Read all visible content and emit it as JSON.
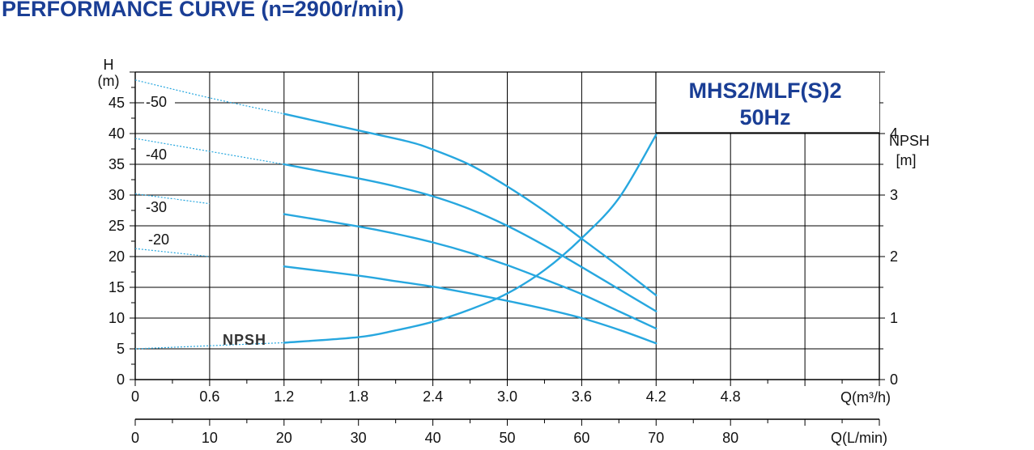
{
  "title": "PERFORMANCE CURVE (n=2900r/min)",
  "model": {
    "line1": "MHS2/MLF(S)2",
    "line2": "50Hz"
  },
  "colors": {
    "curve": "#27a7df",
    "grid": "#000000",
    "title": "#1a3e95"
  },
  "chart_data": {
    "type": "line",
    "x_unit_label": "Q(m³/h)",
    "x2_unit_label": "Q(L/min)",
    "y_label_top": "H",
    "y_label_unit": "(m)",
    "y2_label_top": "NPSH",
    "y2_label_unit": "[m]",
    "xlim": [
      0,
      6
    ],
    "ylim": [
      0,
      50
    ],
    "y2lim": [
      0,
      5
    ],
    "x_ticks": [
      0,
      0.6,
      1.2,
      1.8,
      2.4,
      3.0,
      3.6,
      4.2,
      4.8
    ],
    "x_tick_labels": [
      "0",
      "0.6",
      "1.2",
      "1.8",
      "2.4",
      "3.0",
      "3.6",
      "4.2",
      "4.8"
    ],
    "x2_ticks": [
      0,
      10,
      20,
      30,
      40,
      50,
      60,
      70,
      80
    ],
    "x2_tick_labels": [
      "0",
      "10",
      "20",
      "30",
      "40",
      "50",
      "60",
      "70",
      "80"
    ],
    "y_ticks": [
      0,
      5,
      10,
      15,
      20,
      25,
      30,
      35,
      40,
      45
    ],
    "y_tick_labels": [
      "0",
      "5",
      "10",
      "15",
      "20",
      "25",
      "30",
      "35",
      "40",
      "45"
    ],
    "y2_ticks": [
      0,
      1,
      2,
      3,
      4
    ],
    "y2_tick_labels": [
      "0",
      "1",
      "2",
      "3",
      "4"
    ],
    "grid": true,
    "series": [
      {
        "name": "-50",
        "axis": "left",
        "dotted_until": 1.2,
        "points": [
          [
            0,
            48.7
          ],
          [
            0.6,
            45.8
          ],
          [
            1.2,
            43.2
          ],
          [
            1.8,
            40.5
          ],
          [
            2.2,
            38.7
          ],
          [
            2.4,
            37.4
          ],
          [
            2.7,
            34.9
          ],
          [
            3.0,
            31.4
          ],
          [
            3.3,
            27.4
          ],
          [
            3.6,
            22.9
          ],
          [
            3.9,
            18.4
          ],
          [
            4.2,
            13.7
          ]
        ]
      },
      {
        "name": "-40",
        "axis": "left",
        "dotted_until": 1.2,
        "points": [
          [
            0,
            39.2
          ],
          [
            0.6,
            37.1
          ],
          [
            1.2,
            35.0
          ],
          [
            1.8,
            32.7
          ],
          [
            2.1,
            31.4
          ],
          [
            2.4,
            29.8
          ],
          [
            2.7,
            27.7
          ],
          [
            3.0,
            25.0
          ],
          [
            3.3,
            21.8
          ],
          [
            3.6,
            18.3
          ],
          [
            3.9,
            14.7
          ],
          [
            4.2,
            11.1
          ]
        ]
      },
      {
        "name": "-30",
        "axis": "left",
        "dotted_until": 0.9,
        "points": [
          [
            0,
            30.2
          ],
          [
            0.6,
            28.6
          ],
          [
            1.2,
            26.9
          ],
          [
            1.8,
            24.9
          ],
          [
            2.1,
            23.7
          ],
          [
            2.4,
            22.3
          ],
          [
            2.7,
            20.6
          ],
          [
            3.0,
            18.6
          ],
          [
            3.3,
            16.3
          ],
          [
            3.6,
            13.9
          ],
          [
            3.9,
            11.1
          ],
          [
            4.2,
            8.3
          ]
        ]
      },
      {
        "name": "-20",
        "axis": "left",
        "dotted_until": 1.0,
        "points": [
          [
            0,
            21.3
          ],
          [
            0.6,
            20.0
          ],
          [
            1.2,
            18.4
          ],
          [
            1.8,
            16.9
          ],
          [
            2.1,
            16.0
          ],
          [
            2.4,
            15.1
          ],
          [
            2.7,
            14.0
          ],
          [
            3.0,
            12.8
          ],
          [
            3.3,
            11.5
          ],
          [
            3.6,
            10.0
          ],
          [
            3.9,
            8.1
          ],
          [
            4.2,
            5.9
          ]
        ]
      },
      {
        "name": "NPSH",
        "axis": "right",
        "dotted_until": 1.2,
        "points": [
          [
            0,
            0.5
          ],
          [
            0.6,
            0.55
          ],
          [
            1.2,
            0.6
          ],
          [
            1.8,
            0.69
          ],
          [
            2.1,
            0.8
          ],
          [
            2.4,
            0.94
          ],
          [
            2.7,
            1.14
          ],
          [
            3.0,
            1.4
          ],
          [
            3.3,
            1.78
          ],
          [
            3.6,
            2.3
          ],
          [
            3.9,
            2.95
          ],
          [
            4.2,
            3.98
          ]
        ]
      }
    ]
  }
}
